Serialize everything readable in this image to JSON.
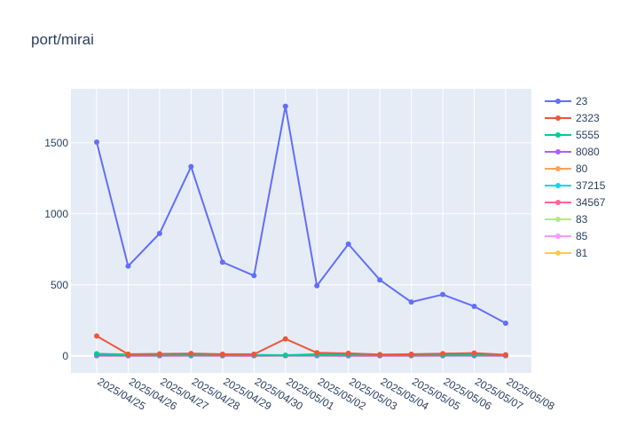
{
  "chart_data": {
    "type": "line",
    "title": "port/mirai",
    "xlabel": "",
    "ylabel": "",
    "ylim": [
      -120,
      1880
    ],
    "y_ticks": [
      0,
      500,
      1000,
      1500
    ],
    "grid": true,
    "legend_position": "right",
    "categories": [
      "2025/04/25",
      "2025/04/26",
      "2025/04/27",
      "2025/04/28",
      "2025/04/29",
      "2025/04/30",
      "2025/05/01",
      "2025/05/02",
      "2025/05/03",
      "2025/05/04",
      "2025/05/05",
      "2025/05/06",
      "2025/05/07",
      "2025/05/08"
    ],
    "series": [
      {
        "name": "23",
        "color": "#636efa",
        "values": [
          1505,
          632,
          862,
          1332,
          660,
          565,
          1757,
          494,
          787,
          535,
          379,
          432,
          349,
          230
        ]
      },
      {
        "name": "2323",
        "color": "#ef553b",
        "values": [
          140,
          12,
          14,
          17,
          12,
          12,
          120,
          22,
          18,
          10,
          12,
          16,
          20,
          8
        ]
      },
      {
        "name": "5555",
        "color": "#00cc96",
        "values": [
          15,
          10,
          10,
          9,
          8,
          7,
          5,
          12,
          10,
          6,
          8,
          8,
          10,
          6
        ]
      },
      {
        "name": "8080",
        "color": "#ab63fa",
        "values": [
          3,
          2,
          2,
          3,
          2,
          2,
          3,
          3,
          2,
          2,
          2,
          3,
          3,
          2
        ]
      },
      {
        "name": "80",
        "color": "#ffa15a",
        "values": [
          4,
          3,
          3,
          4,
          3,
          2,
          3,
          5,
          4,
          3,
          3,
          4,
          4,
          3
        ]
      },
      {
        "name": "37215",
        "color": "#19d3f3",
        "values": [
          3,
          2,
          2,
          2,
          2,
          2,
          2,
          3,
          2,
          2,
          2,
          2,
          3,
          2
        ]
      },
      {
        "name": "34567",
        "color": "#ff6692",
        "values": [
          2,
          1,
          1,
          2,
          1,
          1,
          2,
          2,
          1,
          1,
          1,
          2,
          2,
          1
        ]
      },
      {
        "name": "83",
        "color": "#b6e880",
        "values": [
          1,
          1,
          1,
          1,
          1,
          1,
          1,
          1,
          1,
          1,
          1,
          1,
          1,
          1
        ]
      },
      {
        "name": "85",
        "color": "#ff97ff",
        "values": [
          1,
          1,
          1,
          1,
          1,
          1,
          1,
          1,
          1,
          1,
          1,
          1,
          1,
          1
        ]
      },
      {
        "name": "81",
        "color": "#fecb52",
        "values": [
          2,
          1,
          1,
          2,
          1,
          1,
          1,
          2,
          1,
          1,
          1,
          1,
          2,
          1
        ]
      }
    ]
  }
}
